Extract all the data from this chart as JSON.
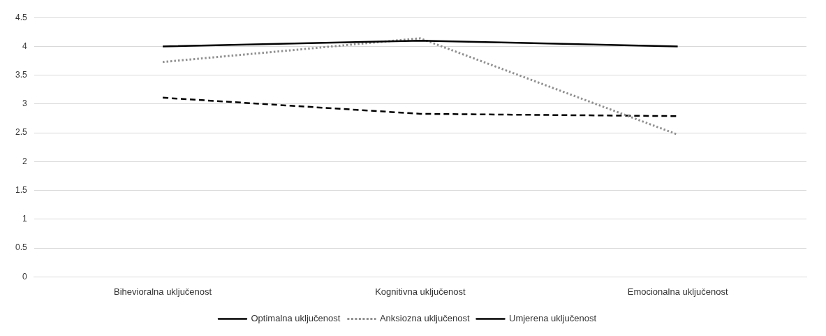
{
  "chart_data": {
    "type": "line",
    "categories": [
      "Bihevioralna uključenost",
      "Kognitivna uključenost",
      "Emocionalna uključenost"
    ],
    "ylim": [
      0,
      4.5
    ],
    "yticks": [
      0,
      0.5,
      1,
      1.5,
      2,
      2.5,
      3,
      3.5,
      4,
      4.5
    ],
    "grid": "y",
    "legend": "bottom",
    "marker": "none",
    "series": [
      {
        "name": "Optimalna uključenost",
        "color": "#000000",
        "line_style": "solid",
        "values": [
          4.0,
          4.1,
          4.0
        ]
      },
      {
        "name": "Anksiozna uključenost",
        "color": "#909090",
        "line_style": "dotted",
        "values": [
          3.73,
          4.14,
          2.47
        ]
      },
      {
        "name": "Umjerena uključenost",
        "color": "#000000",
        "line_style": "dashed",
        "values": [
          3.11,
          2.83,
          2.79
        ]
      }
    ]
  }
}
